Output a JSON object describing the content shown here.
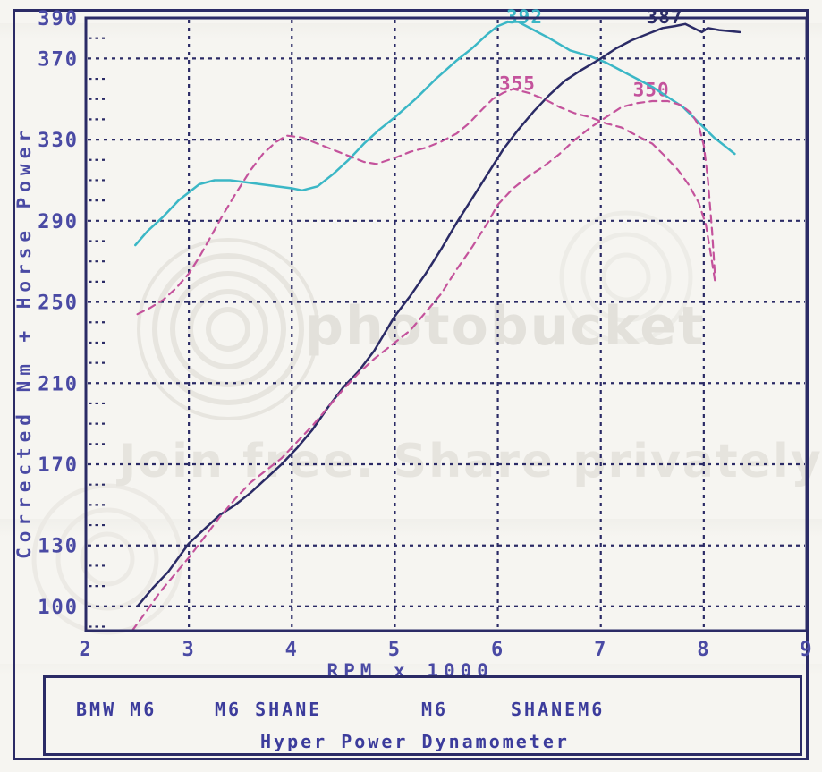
{
  "watermark": {
    "brand": "photobucket",
    "tagline": "Join free. Share privately."
  },
  "legend": {
    "items": [
      "BMW M6",
      "M6 SHANE",
      "M6",
      "SHANEM6"
    ],
    "footer": "Hyper Power Dynamometer"
  },
  "chart_data": {
    "type": "line",
    "title": "",
    "xlabel": "RPM x 1000",
    "ylabel": "Corrected Nm + Horse Power",
    "xlim": [
      2,
      9
    ],
    "ylim": [
      88,
      390
    ],
    "x_ticks": [
      2,
      3,
      4,
      5,
      6,
      7,
      8,
      9
    ],
    "y_ticks": [
      100,
      130,
      170,
      210,
      250,
      290,
      330,
      370,
      390
    ],
    "y_minor_step": 10,
    "grid": true,
    "legend_position": "bottom",
    "colors": {
      "axis": "#2b2b66",
      "tick_text": "#4a4aa4",
      "run1_nm": "#3bb7c6",
      "run1_hp": "#2b2b66",
      "run2": "#c4539c"
    },
    "series": [
      {
        "name": "run1_nm",
        "peak_label": "392",
        "label_anchor_rpm": 6.26,
        "label_anchor_value": 390.5,
        "color": "#3bb7c6",
        "style": "solid",
        "points": [
          [
            2.48,
            278
          ],
          [
            2.6,
            285
          ],
          [
            2.75,
            292
          ],
          [
            2.9,
            300
          ],
          [
            3.0,
            304
          ],
          [
            3.1,
            308
          ],
          [
            3.25,
            310
          ],
          [
            3.4,
            310
          ],
          [
            3.55,
            309
          ],
          [
            3.7,
            308
          ],
          [
            3.85,
            307
          ],
          [
            4.0,
            306
          ],
          [
            4.1,
            305
          ],
          [
            4.25,
            307
          ],
          [
            4.4,
            313
          ],
          [
            4.55,
            320
          ],
          [
            4.7,
            328
          ],
          [
            4.85,
            335
          ],
          [
            5.0,
            341
          ],
          [
            5.2,
            350
          ],
          [
            5.4,
            360
          ],
          [
            5.6,
            369
          ],
          [
            5.75,
            375
          ],
          [
            5.9,
            382
          ],
          [
            6.0,
            386
          ],
          [
            6.1,
            388
          ],
          [
            6.2,
            388
          ],
          [
            6.35,
            384
          ],
          [
            6.5,
            380
          ],
          [
            6.7,
            374
          ],
          [
            6.9,
            371
          ],
          [
            7.05,
            368
          ],
          [
            7.2,
            364
          ],
          [
            7.35,
            360
          ],
          [
            7.5,
            356
          ],
          [
            7.65,
            351
          ],
          [
            7.8,
            346
          ],
          [
            7.9,
            341
          ],
          [
            8.0,
            336
          ],
          [
            8.1,
            331
          ],
          [
            8.2,
            327
          ],
          [
            8.3,
            323
          ]
        ]
      },
      {
        "name": "run1_hp",
        "peak_label": "387",
        "label_anchor_rpm": 7.62,
        "label_anchor_value": 390.5,
        "color": "#2b2b66",
        "style": "solid",
        "points": [
          [
            2.5,
            100
          ],
          [
            2.65,
            109
          ],
          [
            2.8,
            117
          ],
          [
            3.0,
            131
          ],
          [
            3.15,
            138
          ],
          [
            3.3,
            145
          ],
          [
            3.45,
            150
          ],
          [
            3.6,
            156
          ],
          [
            3.75,
            163
          ],
          [
            3.9,
            170
          ],
          [
            4.05,
            178
          ],
          [
            4.2,
            187
          ],
          [
            4.35,
            198
          ],
          [
            4.5,
            208
          ],
          [
            4.65,
            216
          ],
          [
            4.8,
            226
          ],
          [
            5.0,
            243
          ],
          [
            5.15,
            253
          ],
          [
            5.3,
            264
          ],
          [
            5.45,
            276
          ],
          [
            5.6,
            289
          ],
          [
            5.75,
            301
          ],
          [
            5.9,
            313
          ],
          [
            6.05,
            325
          ],
          [
            6.2,
            335
          ],
          [
            6.35,
            344
          ],
          [
            6.5,
            352
          ],
          [
            6.65,
            359
          ],
          [
            6.8,
            364
          ],
          [
            7.0,
            370
          ],
          [
            7.15,
            375
          ],
          [
            7.3,
            379
          ],
          [
            7.45,
            382
          ],
          [
            7.6,
            385
          ],
          [
            7.72,
            386
          ],
          [
            7.82,
            387
          ],
          [
            7.9,
            385
          ],
          [
            7.98,
            383
          ],
          [
            8.04,
            385
          ],
          [
            8.15,
            384
          ],
          [
            8.35,
            383
          ]
        ]
      },
      {
        "name": "run2_nm",
        "peak_label": "355",
        "label_anchor_rpm": 6.19,
        "label_anchor_value": 357.5,
        "color": "#c4539c",
        "style": "dashed",
        "points": [
          [
            2.5,
            244
          ],
          [
            2.62,
            247
          ],
          [
            2.75,
            251
          ],
          [
            2.88,
            257
          ],
          [
            3.0,
            264
          ],
          [
            3.1,
            272
          ],
          [
            3.2,
            281
          ],
          [
            3.32,
            292
          ],
          [
            3.45,
            303
          ],
          [
            3.6,
            315
          ],
          [
            3.72,
            323
          ],
          [
            3.85,
            329
          ],
          [
            3.95,
            332
          ],
          [
            4.1,
            331
          ],
          [
            4.25,
            328
          ],
          [
            4.4,
            325
          ],
          [
            4.55,
            322
          ],
          [
            4.7,
            319
          ],
          [
            4.82,
            318
          ],
          [
            5.0,
            321
          ],
          [
            5.15,
            324
          ],
          [
            5.3,
            326
          ],
          [
            5.45,
            329
          ],
          [
            5.6,
            333
          ],
          [
            5.72,
            338
          ],
          [
            5.85,
            345
          ],
          [
            5.95,
            350
          ],
          [
            6.05,
            353
          ],
          [
            6.15,
            355
          ],
          [
            6.3,
            353
          ],
          [
            6.45,
            350
          ],
          [
            6.6,
            346
          ],
          [
            6.75,
            343
          ],
          [
            6.9,
            341
          ],
          [
            7.05,
            338
          ],
          [
            7.2,
            336
          ],
          [
            7.35,
            332
          ],
          [
            7.5,
            328
          ],
          [
            7.62,
            322
          ],
          [
            7.75,
            315
          ],
          [
            7.85,
            308
          ],
          [
            7.95,
            299
          ],
          [
            8.02,
            288
          ],
          [
            8.07,
            273
          ],
          [
            8.11,
            260
          ]
        ]
      },
      {
        "name": "run2_hp",
        "peak_label": "350",
        "label_anchor_rpm": 7.49,
        "label_anchor_value": 354.5,
        "color": "#c4539c",
        "style": "dashed",
        "points": [
          [
            2.45,
            88
          ],
          [
            2.58,
            97
          ],
          [
            2.72,
            107
          ],
          [
            2.85,
            115
          ],
          [
            3.0,
            124
          ],
          [
            3.15,
            134
          ],
          [
            3.3,
            144
          ],
          [
            3.45,
            153
          ],
          [
            3.6,
            161
          ],
          [
            3.75,
            167
          ],
          [
            3.9,
            173
          ],
          [
            4.05,
            181
          ],
          [
            4.2,
            189
          ],
          [
            4.35,
            198
          ],
          [
            4.5,
            207
          ],
          [
            4.65,
            215
          ],
          [
            4.8,
            222
          ],
          [
            5.0,
            230
          ],
          [
            5.15,
            236
          ],
          [
            5.3,
            245
          ],
          [
            5.45,
            254
          ],
          [
            5.6,
            266
          ],
          [
            5.75,
            277
          ],
          [
            5.9,
            289
          ],
          [
            6.0,
            298
          ],
          [
            6.15,
            306
          ],
          [
            6.3,
            312
          ],
          [
            6.45,
            317
          ],
          [
            6.6,
            323
          ],
          [
            6.75,
            330
          ],
          [
            6.9,
            336
          ],
          [
            7.05,
            341
          ],
          [
            7.2,
            346
          ],
          [
            7.35,
            348
          ],
          [
            7.5,
            349
          ],
          [
            7.65,
            349
          ],
          [
            7.78,
            347
          ],
          [
            7.88,
            343
          ],
          [
            7.95,
            337
          ],
          [
            8.0,
            327
          ],
          [
            8.04,
            310
          ],
          [
            8.08,
            285
          ],
          [
            8.11,
            262
          ]
        ]
      }
    ]
  }
}
